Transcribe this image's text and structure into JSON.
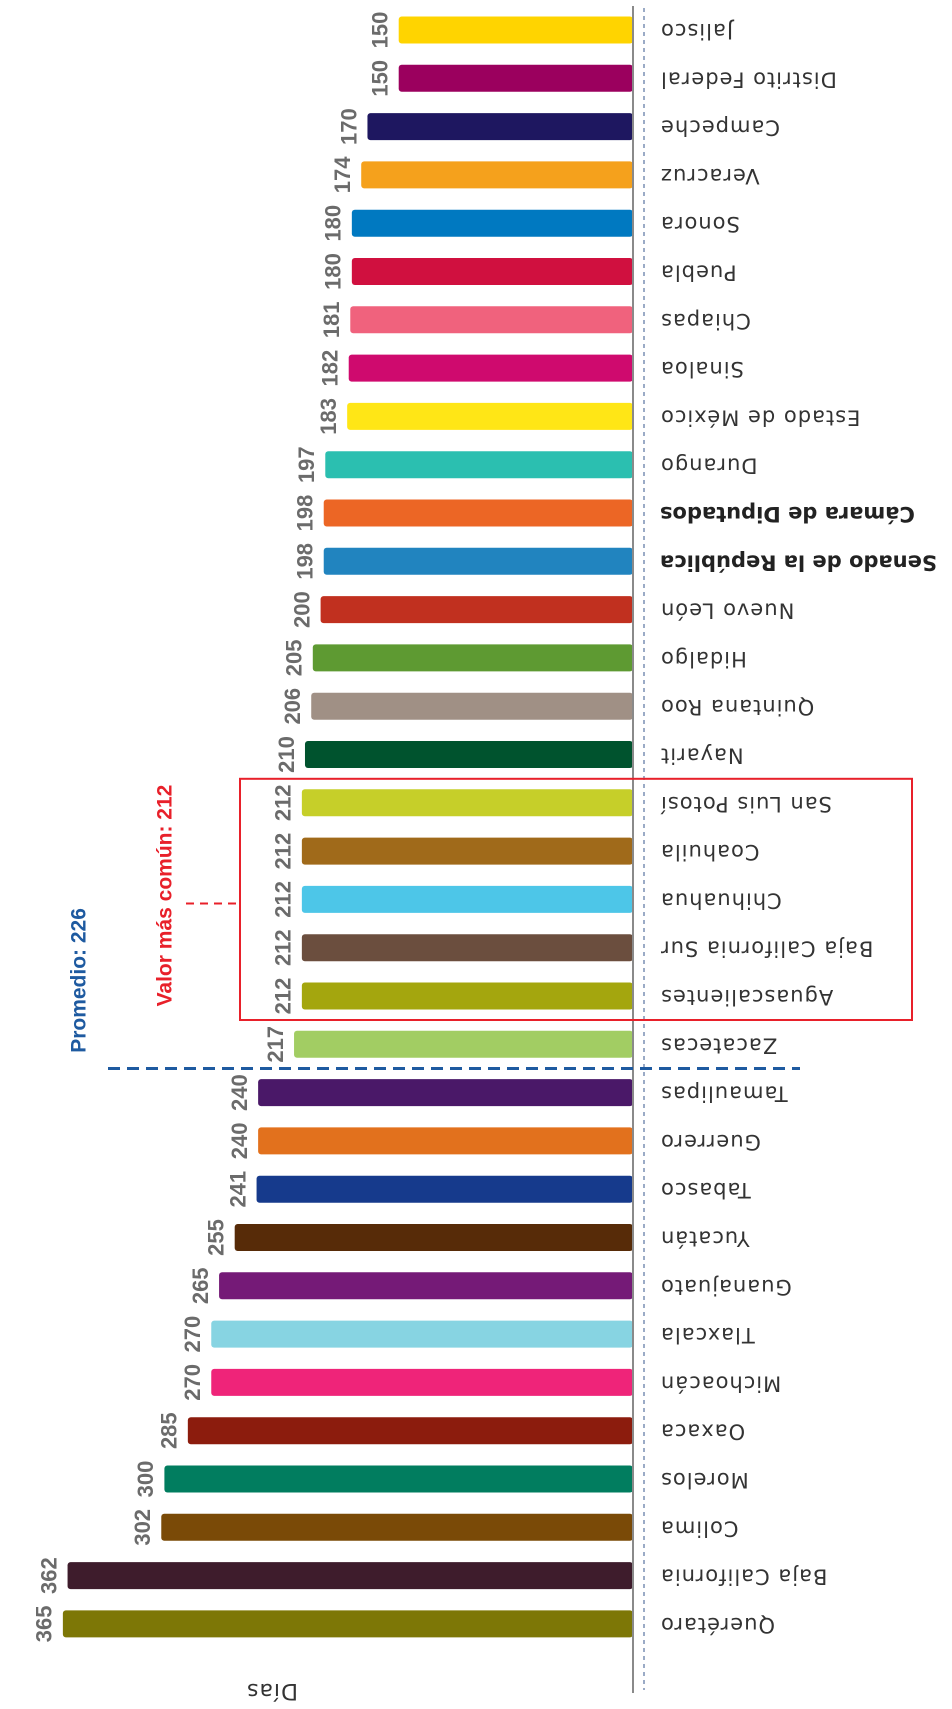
{
  "chart_data": {
    "type": "bar",
    "orientation": "horizontal",
    "ylabel": "Días",
    "categories": [
      "Jalisco",
      "Distrito Federal",
      "Campeche",
      "Veracruz",
      "Sonora",
      "Puebla",
      "Chiapas",
      "Sinaloa",
      "Estado de México",
      "Durango",
      "Cámara de Diputados",
      "Senado de la República",
      "Nuevo León",
      "Hidalgo",
      "Quintana Roo",
      "Nayarit",
      "San Luis Potosí",
      "Coahuila",
      "Chihuahua",
      "Baja California Sur",
      "Aguascalientes",
      "Zacatecas",
      "Tamaulipas",
      "Guerrero",
      "Tabasco",
      "Yucatán",
      "Guanajuato",
      "Tlaxcala",
      "Michoacán",
      "Oaxaca",
      "Morelos",
      "Colima",
      "Baja California",
      "Querétaro"
    ],
    "values": [
      150,
      150,
      170,
      174,
      180,
      180,
      181,
      182,
      183,
      197,
      198,
      198,
      200,
      205,
      206,
      210,
      212,
      212,
      212,
      212,
      212,
      217,
      240,
      240,
      241,
      255,
      265,
      270,
      270,
      285,
      300,
      302,
      362,
      365
    ],
    "colors": [
      "#FFD400",
      "#9B005E",
      "#1E1760",
      "#F5A11C",
      "#0079C1",
      "#D0103F",
      "#F0627D",
      "#CF0A6E",
      "#FFE616",
      "#2BBFB0",
      "#EC6625",
      "#2184BF",
      "#C1301F",
      "#5E9A32",
      "#A09085",
      "#00532E",
      "#C6CF29",
      "#A06A1A",
      "#4DC6E8",
      "#6B4E3E",
      "#A4A60E",
      "#A2CD63",
      "#4A1868",
      "#E2711D",
      "#163A8C",
      "#572B08",
      "#751A77",
      "#87D4E2",
      "#EF2479",
      "#8C1C0D",
      "#017D5F",
      "#7A4A07",
      "#3E1C2C",
      "#7D7706"
    ],
    "bold_categories": [
      "Cámara de Diputados",
      "Senado de la República"
    ],
    "xlim": [
      0,
      365
    ],
    "annotations": [
      {
        "label": "Promedio: 226",
        "value": 226,
        "color": "#1E5AA0"
      },
      {
        "label": "Valor más común: 212",
        "value": 212,
        "color": "#E8202A"
      }
    ]
  }
}
